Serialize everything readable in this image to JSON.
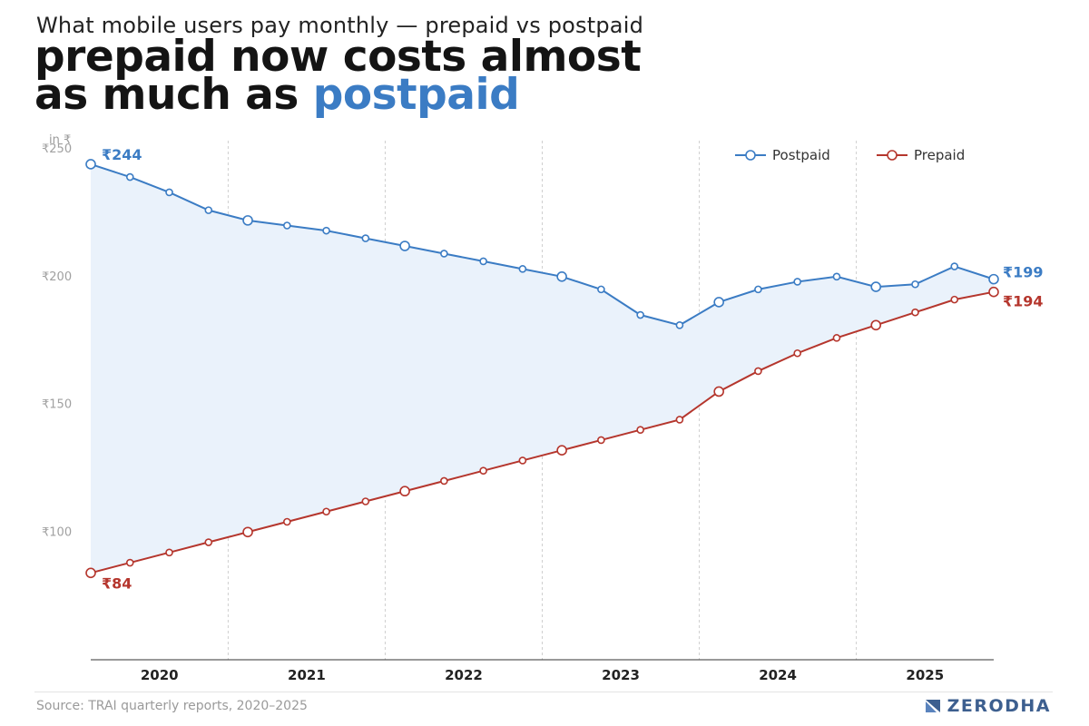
{
  "header": {
    "subtitle": "What mobile users pay monthly — prepaid vs postpaid",
    "title_part1": "prepaid now costs almost",
    "title_part2": "as much as ",
    "title_accent": "postpaid"
  },
  "footer": {
    "source": "Source: TRAI quarterly reports, 2020–2025",
    "brand": "ZERODHA"
  },
  "colors": {
    "postpaid": "#3b7cc4",
    "prepaid": "#b5362d",
    "band_fill": "#eaf2fb",
    "accent": "#3b7cc4"
  },
  "chart_data": {
    "type": "line",
    "unit_label": "in ₹",
    "ylim": [
      50,
      255
    ],
    "yticks": [
      100,
      150,
      200,
      250
    ],
    "ytick_labels": [
      "₹100",
      "₹150",
      "₹200",
      "₹250"
    ],
    "years": [
      "2020",
      "2021",
      "2022",
      "2023",
      "2024",
      "2025"
    ],
    "grid": "vertical year dividers (dotted)",
    "legend_position": "top-right",
    "series": [
      {
        "name": "Postpaid",
        "values": [
          244,
          239,
          233,
          226,
          222,
          220,
          218,
          215,
          212,
          209,
          206,
          203,
          200,
          195,
          185,
          181,
          190,
          195,
          198,
          200,
          196,
          197,
          204,
          199
        ]
      },
      {
        "name": "Prepaid",
        "values": [
          84,
          88,
          92,
          96,
          100,
          104,
          108,
          112,
          116,
          120,
          124,
          128,
          132,
          136,
          140,
          144,
          155,
          163,
          170,
          176,
          181,
          186,
          191,
          194
        ]
      }
    ],
    "annotations": {
      "postpaid_start": "₹244",
      "postpaid_end": "₹199",
      "prepaid_start": "₹84",
      "prepaid_end": "₹194"
    }
  }
}
